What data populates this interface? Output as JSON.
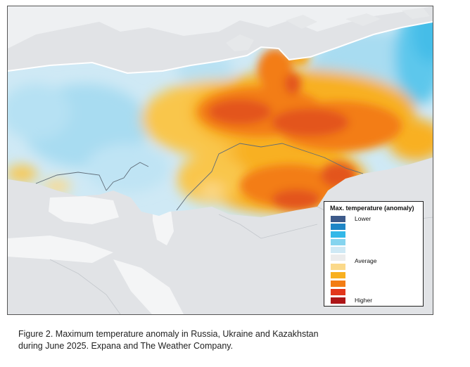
{
  "legend": {
    "title": "Max. temperature (anomaly)",
    "colors": [
      "#3d5a8a",
      "#1f86c6",
      "#33b8e8",
      "#85d4ef",
      "#cfe9f5",
      "#ececec",
      "#fbd98a",
      "#f8b020",
      "#f37d14",
      "#e3361b",
      "#ad1517"
    ],
    "labels": {
      "lower": "Lower",
      "average": "Average",
      "higher": "Higher"
    }
  },
  "caption": {
    "line1": "Figure 2. Maximum temperature anomaly in Russia, Ukraine and Kazakhstan",
    "line2": "during June 2025. Expana and The Weather Company."
  }
}
